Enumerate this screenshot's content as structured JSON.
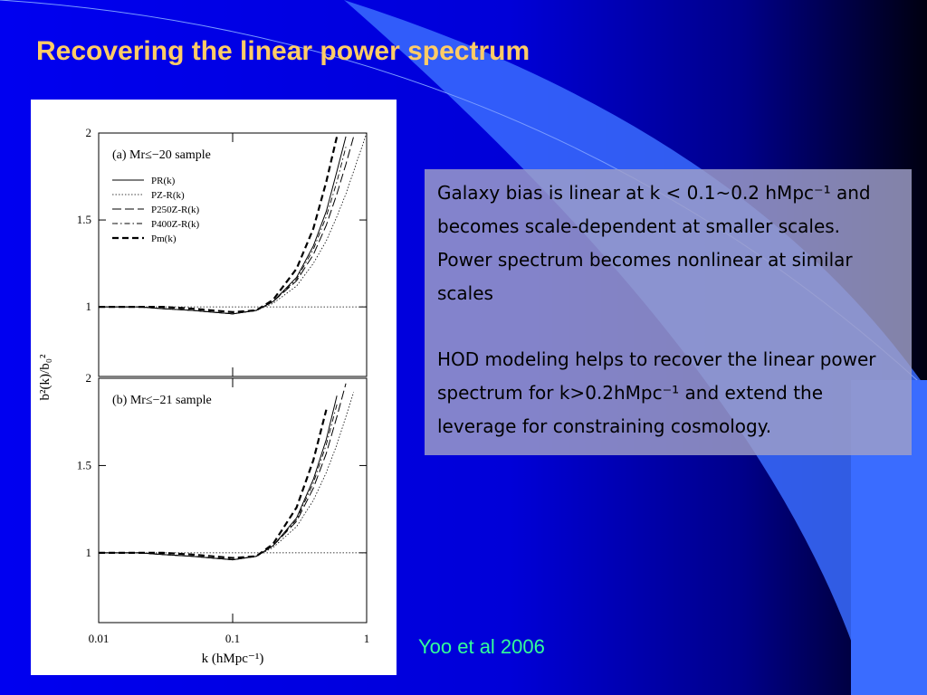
{
  "slide": {
    "title": "Recovering the linear power spectrum",
    "paragraphs": [
      "Galaxy bias is linear at k < 0.1~0.2 hMpc⁻¹ and becomes scale-dependent at smaller scales. Power spectrum becomes nonlinear at similar scales",
      "HOD modeling helps to recover the linear power spectrum for k>0.2hMpc⁻¹ and extend the leverage for constraining cosmology."
    ],
    "citation": "Yoo et al 2006"
  },
  "chart_data": [
    {
      "type": "line",
      "title": "(a)  Mr≤−20 sample",
      "ylabel": "b²(k)/b₀²",
      "xlog": true,
      "xlim": [
        0.01,
        1
      ],
      "ylim": [
        0.6,
        2
      ],
      "yticks": [
        1,
        1.5,
        2
      ],
      "reference_line": 1,
      "legend": "upper-left",
      "x": [
        0.01,
        0.02,
        0.03,
        0.05,
        0.07,
        0.1,
        0.15,
        0.2,
        0.3,
        0.4,
        0.5,
        0.6,
        0.7,
        0.8,
        1
      ],
      "series": [
        {
          "name": "PR(k)",
          "color": "#000000",
          "style": "solid",
          "values": [
            1,
            1,
            0.99,
            0.98,
            0.97,
            0.96,
            0.98,
            1.03,
            1.17,
            1.35,
            1.55,
            1.78,
            1.98,
            null,
            null
          ]
        },
        {
          "name": "PZ-R(k)",
          "color": "#000000",
          "style": "dotted",
          "values": [
            1,
            1,
            0.99,
            0.98,
            0.97,
            0.96,
            0.98,
            1.02,
            1.12,
            1.25,
            1.38,
            1.52,
            1.65,
            1.78,
            2
          ]
        },
        {
          "name": "P250Z-R(k)",
          "color": "#000000",
          "style": "longdash",
          "values": [
            1,
            1,
            0.99,
            0.98,
            0.97,
            0.96,
            0.98,
            1.03,
            1.15,
            1.3,
            1.47,
            1.65,
            1.82,
            1.98,
            null
          ]
        },
        {
          "name": "P400Z-R(k)",
          "color": "#000000",
          "style": "dashdot",
          "values": [
            1,
            1,
            0.99,
            0.98,
            0.97,
            0.96,
            0.98,
            1.03,
            1.16,
            1.33,
            1.52,
            1.72,
            1.92,
            null,
            null
          ]
        },
        {
          "name": "Pm(k)",
          "color": "#000000",
          "style": "thickdash",
          "values": [
            1,
            1,
            1,
            0.99,
            0.98,
            0.97,
            0.98,
            1.04,
            1.22,
            1.45,
            1.72,
            1.98,
            null,
            null,
            null
          ]
        }
      ]
    },
    {
      "type": "line",
      "title": "(b)  Mr≤−21 sample",
      "xlabel": "k (hMpc⁻¹)",
      "xlog": true,
      "xlim": [
        0.01,
        1
      ],
      "xticks": [
        0.01,
        0.1,
        1
      ],
      "ylim": [
        0.6,
        2
      ],
      "yticks": [
        1,
        1.5,
        2
      ],
      "reference_line": 1,
      "x": [
        0.01,
        0.02,
        0.03,
        0.05,
        0.07,
        0.1,
        0.15,
        0.2,
        0.3,
        0.4,
        0.5,
        0.6,
        0.7,
        0.8,
        1
      ],
      "series": [
        {
          "color": "#000000",
          "style": "solid",
          "values": [
            1,
            1,
            0.99,
            0.98,
            0.97,
            0.96,
            0.98,
            1.04,
            1.2,
            1.42,
            1.65,
            1.9,
            null,
            null,
            null
          ]
        },
        {
          "color": "#000000",
          "style": "dotted",
          "values": [
            1,
            1,
            0.99,
            0.98,
            0.97,
            0.96,
            0.98,
            1.03,
            1.15,
            1.3,
            1.46,
            1.62,
            1.78,
            1.92,
            null
          ]
        },
        {
          "color": "#000000",
          "style": "longdash",
          "values": [
            1,
            1,
            0.99,
            0.98,
            0.97,
            0.96,
            0.98,
            1.04,
            1.18,
            1.37,
            1.57,
            1.78,
            1.97,
            null,
            null
          ]
        },
        {
          "color": "#000000",
          "style": "dashdot",
          "values": [
            1,
            1,
            0.99,
            0.98,
            0.97,
            0.96,
            0.98,
            1.04,
            1.19,
            1.4,
            1.62,
            1.85,
            null,
            null,
            null
          ]
        },
        {
          "color": "#000000",
          "style": "thickdash",
          "values": [
            1,
            1,
            1,
            0.99,
            0.98,
            0.97,
            0.98,
            1.05,
            1.26,
            1.53,
            1.82,
            null,
            null,
            null,
            null
          ]
        }
      ]
    }
  ]
}
